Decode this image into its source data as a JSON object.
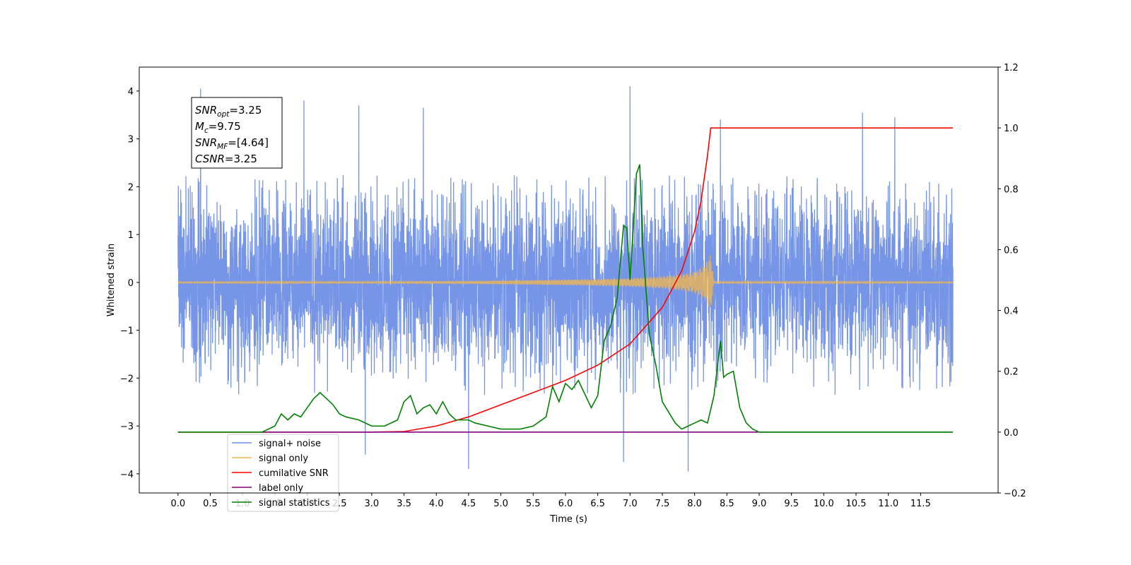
{
  "chart_data": {
    "type": "line",
    "title": "",
    "xlabel": "Time (s)",
    "ylabel": "Whitened strain",
    "xlim": [
      -0.6,
      12.7
    ],
    "ylim": [
      -4.4,
      4.5
    ],
    "y2lim": [
      -0.2,
      1.2
    ],
    "x_ticks": [
      0.0,
      0.5,
      1.0,
      1.5,
      2.0,
      2.5,
      3.0,
      3.5,
      4.0,
      4.5,
      5.0,
      5.5,
      6.0,
      6.5,
      7.0,
      7.5,
      8.0,
      8.5,
      9.0,
      9.5,
      10.0,
      10.5,
      11.0,
      11.5
    ],
    "x_tick_labels": [
      "0.0",
      "0.5",
      "1.0",
      "1.5",
      "2.0",
      "2.5",
      "3.0",
      "3.5",
      "4.0",
      "4.5",
      "5.0",
      "5.5",
      "6.0",
      "6.5",
      "7.0",
      "7.5",
      "8.0",
      "8.5",
      "9.0",
      "9.5",
      "10.0",
      "10.5",
      "11.0",
      "11.5"
    ],
    "y_ticks": [
      -4,
      -3,
      -2,
      -1,
      0,
      1,
      2,
      3,
      4
    ],
    "y_tick_labels": [
      "−4",
      "−3",
      "−2",
      "−1",
      "0",
      "1",
      "2",
      "3",
      "4"
    ],
    "y2_ticks": [
      -0.2,
      0.0,
      0.2,
      0.4,
      0.6,
      0.8,
      1.0,
      1.2
    ],
    "y2_tick_labels": [
      "−0.2",
      "0.0",
      "0.2",
      "0.4",
      "0.6",
      "0.8",
      "1.0",
      "1.2"
    ],
    "series": [
      {
        "name": "signal+ noise",
        "axis": "left",
        "color": "#6f8fe6",
        "x_range": [
          0.0,
          12.0
        ],
        "envelope_positive": 2.3,
        "envelope_negative": -2.4,
        "spikes": [
          [
            0.35,
            4.05
          ],
          [
            2.8,
            3.7
          ],
          [
            3.8,
            3.65
          ],
          [
            6.9,
            -3.75
          ],
          [
            7.0,
            4.1
          ],
          [
            7.9,
            -3.95
          ],
          [
            4.5,
            -3.9
          ],
          [
            2.9,
            -3.6
          ],
          [
            1.95,
            3.8
          ],
          [
            8.4,
            3.4
          ],
          [
            10.6,
            3.55
          ],
          [
            11.1,
            3.45
          ]
        ]
      },
      {
        "name": "signal only",
        "axis": "left",
        "color": "#f5b74b",
        "x": [
          0.0,
          3.0,
          4.5,
          5.5,
          6.5,
          7.0,
          7.5,
          7.8,
          8.0,
          8.15,
          8.25,
          8.3,
          12.0
        ],
        "envelope": [
          0.01,
          0.02,
          0.03,
          0.05,
          0.07,
          0.09,
          0.13,
          0.17,
          0.23,
          0.35,
          0.6,
          0.02,
          0.01
        ]
      },
      {
        "name": "cumilative SNR",
        "axis": "right",
        "color": "#ff0000",
        "x": [
          0.0,
          3.0,
          3.5,
          4.0,
          4.5,
          5.0,
          5.5,
          6.0,
          6.5,
          7.0,
          7.5,
          7.8,
          8.0,
          8.1,
          8.2,
          8.25,
          12.0
        ],
        "y": [
          0.0,
          0.0,
          0.002,
          0.02,
          0.05,
          0.09,
          0.13,
          0.17,
          0.22,
          0.29,
          0.41,
          0.53,
          0.66,
          0.76,
          0.91,
          1.0,
          1.0
        ]
      },
      {
        "name": "label only",
        "axis": "right",
        "color": "#800080",
        "x": [
          0.0,
          12.0
        ],
        "y": [
          0.0,
          0.0
        ]
      },
      {
        "name": "signal statistics",
        "axis": "right",
        "color": "#008000",
        "x": [
          0.0,
          1.3,
          1.5,
          1.6,
          1.7,
          1.8,
          1.9,
          2.0,
          2.1,
          2.2,
          2.3,
          2.4,
          2.5,
          2.6,
          2.8,
          3.0,
          3.2,
          3.4,
          3.5,
          3.6,
          3.7,
          3.8,
          3.9,
          4.0,
          4.1,
          4.2,
          4.3,
          4.5,
          4.6,
          4.8,
          5.0,
          5.3,
          5.5,
          5.7,
          5.8,
          5.9,
          6.0,
          6.1,
          6.2,
          6.4,
          6.5,
          6.6,
          6.7,
          6.8,
          6.9,
          6.95,
          7.0,
          7.1,
          7.15,
          7.2,
          7.3,
          7.4,
          7.5,
          7.7,
          7.8,
          7.9,
          8.0,
          8.1,
          8.2,
          8.3,
          8.4,
          8.45,
          8.5,
          8.6,
          8.7,
          8.8,
          8.9,
          9.0,
          9.2,
          12.0
        ],
        "y": [
          0.0,
          0.0,
          0.02,
          0.06,
          0.04,
          0.06,
          0.05,
          0.08,
          0.11,
          0.13,
          0.11,
          0.09,
          0.06,
          0.05,
          0.04,
          0.02,
          0.02,
          0.04,
          0.1,
          0.12,
          0.06,
          0.08,
          0.09,
          0.06,
          0.1,
          0.06,
          0.04,
          0.04,
          0.03,
          0.02,
          0.01,
          0.01,
          0.02,
          0.05,
          0.15,
          0.1,
          0.16,
          0.14,
          0.17,
          0.08,
          0.12,
          0.3,
          0.35,
          0.44,
          0.68,
          0.67,
          0.5,
          0.85,
          0.88,
          0.6,
          0.32,
          0.22,
          0.1,
          0.03,
          0.01,
          0.02,
          0.03,
          0.04,
          0.03,
          0.12,
          0.3,
          0.18,
          0.19,
          0.2,
          0.08,
          0.03,
          0.01,
          0.0,
          0.0,
          0.0
        ]
      }
    ],
    "legend": {
      "placement": "lower-left",
      "entries": [
        {
          "label": "signal+ noise",
          "color": "#6f8fe6"
        },
        {
          "label": "signal only",
          "color": "#f5b74b"
        },
        {
          "label": "cumilative SNR",
          "color": "#ff0000"
        },
        {
          "label": "label only",
          "color": "#800080"
        },
        {
          "label": "signal statistics",
          "color": "#008000"
        }
      ]
    },
    "annotation": {
      "lines": [
        {
          "base": "SNR",
          "sub": "opt",
          "value": "=3.25"
        },
        {
          "base": "M",
          "sub": "c",
          "value": "=9.75"
        },
        {
          "base": "SNR",
          "sub": "MF",
          "value": "=[4.64]"
        },
        {
          "base": "CSNR",
          "sub": "",
          "value": "=3.25"
        }
      ]
    },
    "grid": false
  }
}
